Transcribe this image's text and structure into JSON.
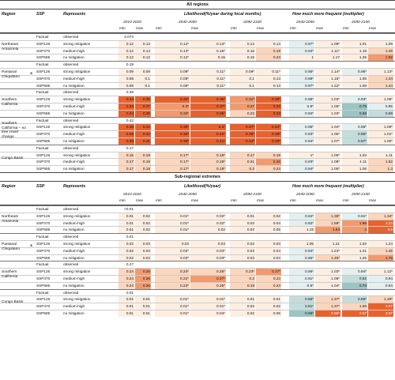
{
  "headers": {
    "region": "Region",
    "ssp": "SSP",
    "represents": "Represents",
    "likelihood_all": "Likelihood(%/year during focal months)",
    "likelihood_sub": "Likelihood(%/year)",
    "frequent": "How much more frequent (multiplier)",
    "p1": "2010-2020",
    "p2": "2040-2050",
    "p3": "2090-2100",
    "fp1": "2040-2050",
    "fp2": "2090-2100",
    "min": "min",
    "max": "max"
  },
  "sections": [
    {
      "title": "All regions",
      "regions": [
        {
          "label": [
            "Northeast",
            "Amazonia"
          ],
          "rows": [
            {
              "ssp": "Factual",
              "rep": "observed",
              "v": [
                "0.073",
                "",
                "",
                "",
                "",
                "",
                "",
                "",
                "",
                ""
              ]
            },
            {
              "ssp": "SSP126",
              "rep": "strong mitigation",
              "v": [
                "0.12",
                "0.12",
                "0.12*",
                "0.14*",
                "0.14",
                "0.13",
                "0.97*",
                "1.09*",
                "1.01",
                "1.09"
              ]
            },
            {
              "ssp": "SSP370",
              "rep": "medium-high",
              "v": [
                "0.12",
                "0.13",
                "0.13*",
                "0.15*",
                "0.15",
                "0.19",
                "0.93*",
                "1.11*",
                "1.19",
                "1.46"
              ]
            },
            {
              "ssp": "SSP585",
              "rep": "no mitigation",
              "v": [
                "0.12",
                "0.12",
                "0.12*",
                "0.15",
                "0.15",
                "0.23",
                "1",
                "1.17",
                "1.26",
                "1.92"
              ]
            }
          ]
        },
        {
          "label": [
            "Pantanal",
            "Chiquitano"
          ],
          "amp": "&",
          "rows": [
            {
              "ssp": "Factual",
              "rep": "observed",
              "v": [
                "0.19",
                "",
                "",
                "",
                "",
                "",
                "",
                "",
                "",
                ""
              ]
            },
            {
              "ssp": "SSP126",
              "rep": "strong mitigation",
              "v": [
                "0.09",
                "0.09",
                "0.09*",
                "0.11*",
                "0.09*",
                "0.11*",
                "0.95*",
                "1.14*",
                "0.96*",
                "1.13*"
              ]
            },
            {
              "ssp": "SSP370",
              "rep": "medium-high",
              "v": [
                "0.08",
                "0.1",
                "0.09*",
                "0.11*",
                "0.1",
                "0.13",
                "0.98*",
                "1.15*",
                "1.05",
                "1.34"
              ]
            },
            {
              "ssp": "SSP585",
              "rep": "no mitigation",
              "v": [
                "0.08",
                "0.1",
                "0.09*",
                "0.11*",
                "0.1",
                "0.13",
                "0.97*",
                "1.22*",
                "1.08",
                "1.44"
              ]
            }
          ]
        },
        {
          "label": [
            "Southern",
            "California"
          ],
          "rows": [
            {
              "ssp": "Factual",
              "rep": "observed",
              "v": [
                "0.38",
                "",
                "",
                "",
                "",
                "",
                "",
                "",
                "",
                ""
              ]
            },
            {
              "ssp": "SSP126",
              "rep": "strong mitigation",
              "v": [
                "0.34",
                "0.36",
                "0.33*",
                "0.36*",
                "0.31*",
                "0.38*",
                "0.95*",
                "1.03*",
                "0.93*",
                "1.09*"
              ]
            },
            {
              "ssp": "SSP370",
              "rep": "medium-high",
              "v": [
                "0.34",
                "0.37",
                "0.3*",
                "0.37*",
                "0.27",
                "0.33",
                "0.9*",
                "1.05*",
                "0.79",
                "0.95"
              ]
            },
            {
              "ssp": "SSP585",
              "rep": "no mitigation",
              "v": [
                "0.34",
                "0.35",
                "0.32*",
                "0.36*",
                "0.23",
                "0.33",
                "0.94*",
                "1.03*",
                "0.69",
                "0.89"
              ]
            }
          ]
        },
        {
          "label": [
            "Southern",
            "California – no",
            "tree cover",
            "change"
          ],
          "rows": [
            {
              "ssp": "Factual",
              "rep": "observed",
              "v": [
                "0.42",
                "",
                "",
                "",
                "",
                "",
                "",
                "",
                "",
                ""
              ]
            },
            {
              "ssp": "SSP126",
              "rep": "strong mitigation",
              "v": [
                "0.38",
                "0.41",
                "0.38*",
                "0.4*",
                "0.37*",
                "0.42*",
                "0.95*",
                "1.04*",
                "0.95*",
                "1.09*"
              ]
            },
            {
              "ssp": "SSP370",
              "rep": "medium-high",
              "v": [
                "0.36",
                "0.42",
                "0.36*",
                "0.42*",
                "0.35*",
                "0.39*",
                "0.93*",
                "1.06*",
                "0.85*",
                "1.01*"
              ]
            },
            {
              "ssp": "SSP585",
              "rep": "no mitigation",
              "v": [
                "0.38",
                "0.41",
                "0.38*",
                "0.41*",
                "0.34*",
                "0.39*",
                "0.94*",
                "1.07*",
                "0.87*",
                "1.00*"
              ]
            }
          ]
        },
        {
          "label": [
            "Congo Basin"
          ],
          "rows": [
            {
              "ssp": "Factual",
              "rep": "observed",
              "v": [
                "0.17",
                "",
                "",
                "",
                "",
                "",
                "",
                "",
                "",
                ""
              ]
            },
            {
              "ssp": "SSP126",
              "rep": "strong mitigation",
              "v": [
                "0.16",
                "0.18",
                "0.17*",
                "0.18*",
                "0.17",
                "0.19",
                "1*",
                "1.05*",
                "1.03",
                "1.11"
              ]
            },
            {
              "ssp": "SSP370",
              "rep": "medium-high",
              "v": [
                "0.17",
                "0.19",
                "0.17*",
                "0.19*",
                "0.21",
                "0.26",
                "0.93*",
                "1.08*",
                "1.11",
                "1.52"
              ]
            },
            {
              "ssp": "SSP585",
              "rep": "no mitigation",
              "v": [
                "0.17",
                "0.18",
                "0.17*",
                "0.18*",
                "0.2",
                "0.23",
                "0.94*",
                "1.05*",
                "1.08",
                "1.3"
              ]
            }
          ]
        }
      ]
    },
    {
      "title": "Sub-regional extremes",
      "regions": [
        {
          "label": [
            "Northeast",
            "Amazonia"
          ],
          "rows": [
            {
              "ssp": "Factual",
              "rep": "observed",
              "v": [
                "<0.01",
                "",
                "",
                "",
                "",
                "",
                "",
                "",
                "",
                ""
              ]
            },
            {
              "ssp": "SSP126",
              "rep": "strong mitigation",
              "v": [
                "0.01",
                "0.02",
                "0.01*",
                "0.02*",
                "0.01",
                "0.02",
                "0.94*",
                "1.38*",
                "0.91*",
                "1.34*"
              ]
            },
            {
              "ssp": "SSP370",
              "rep": "medium-high",
              "v": [
                "0.01",
                "0.02",
                "0.01*",
                "0.02*",
                "0.03",
                "0.04",
                "0.92*",
                "1.58*",
                "1.96",
                "3.23"
              ]
            },
            {
              "ssp": "SSP585",
              "rep": "no mitigation",
              "v": [
                "0.01",
                "0.02",
                "0.01*",
                "0.02",
                "0.03",
                "0.05",
                "1.15",
                "1.64",
                "2",
                "3.6"
              ]
            }
          ]
        },
        {
          "label": [
            "Pantanal",
            "Chiquitano"
          ],
          "amp": "&",
          "rows": [
            {
              "ssp": "Factual",
              "rep": "observed",
              "v": [
                "0.01",
                "",
                "",
                "",
                "",
                "",
                "",
                "",
                "",
                ""
              ]
            },
            {
              "ssp": "SSP126",
              "rep": "strong mitigation",
              "v": [
                "0.02",
                "0.03",
                "0.03",
                "0.03",
                "0.02",
                "0.03",
                "1.05",
                "1.21",
                "1.03",
                "1.24"
              ]
            },
            {
              "ssp": "SSP370",
              "rep": "medium-high",
              "v": [
                "0.02",
                "0.03",
                "0.03*",
                "0.03*",
                "0.03",
                "0.04",
                "0.94*",
                "1.23*",
                "1.21",
                "1.45"
              ]
            },
            {
              "ssp": "SSP585",
              "rep": "no mitigation",
              "v": [
                "0.02",
                "0.03",
                "0.03*",
                "0.03*",
                "0.03",
                "0.04",
                "0.96*",
                "1.45*",
                "1.26",
                "1.76"
              ]
            }
          ]
        },
        {
          "label": [
            "Southern",
            "California"
          ],
          "rows": [
            {
              "ssp": "Factual",
              "rep": "observed",
              "v": [
                "0.27",
                "",
                "",
                "",
                "",
                "",
                "",
                "",
                "",
                ""
              ]
            },
            {
              "ssp": "SSP126",
              "rep": "strong mitigation",
              "v": [
                "0.24",
                "0.26",
                "0.24*",
                "0.25*",
                "0.23*",
                "0.27*",
                "0.96*",
                "1.03*",
                "0.94*",
                "1.12*"
              ]
            },
            {
              "ssp": "SSP370",
              "rep": "medium-high",
              "v": [
                "0.24",
                "0.26",
                "0.22*",
                "0.27*",
                "0.2",
                "0.23",
                "0.91*",
                "1.08*",
                "0.82",
                "0.94"
              ]
            },
            {
              "ssp": "SSP585",
              "rep": "no mitigation",
              "v": [
                "0.24",
                "0.26",
                "0.23*",
                "0.25*",
                "0.18",
                "0.23",
                "0.9*",
                "1.04*",
                "0.76",
                "0.94"
              ]
            }
          ]
        },
        {
          "label": [
            "Congo Basin"
          ],
          "rows": [
            {
              "ssp": "Factual",
              "rep": "observed",
              "v": [
                "0.01",
                "",
                "",
                "",
                "",
                "",
                "",
                "",
                "",
                ""
              ]
            },
            {
              "ssp": "SSP126",
              "rep": "strong mitigation",
              "v": [
                "0.01",
                "0.01",
                "0.01*",
                "0.01*",
                "0.01",
                "0.01",
                "0.86*",
                "1.37*",
                "0.85*",
                "1.49*"
              ]
            },
            {
              "ssp": "SSP370",
              "rep": "medium-high",
              "v": [
                "0.01",
                "0.01",
                "0.01*",
                "0.01*",
                "0.02",
                "0.02",
                "0.81*",
                "1.37*",
                "1.59",
                "3.07"
              ]
            },
            {
              "ssp": "SSP585",
              "rep": "no mitigation",
              "v": [
                "0.01",
                "0.01",
                "0.01*",
                "0.04*",
                "0.02",
                "0.05",
                "0.69*",
                "3.88*",
                "2.57",
                "3.97"
              ]
            }
          ]
        }
      ]
    }
  ],
  "colors": {
    "high": "#e8622e",
    "mid": "#f29a6d",
    "low": "#fbd5bc",
    "faint": "#fdeee2",
    "blue_light": "#e4efef",
    "blue": "#c4dcdc",
    "blue_dark": "#9cc4c4",
    "text_on_dark": "#ffffff"
  }
}
